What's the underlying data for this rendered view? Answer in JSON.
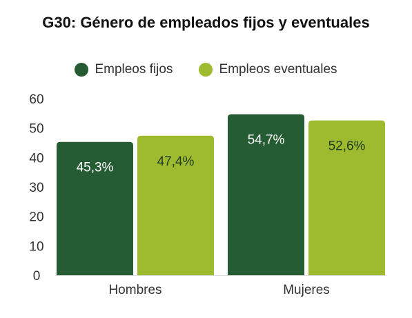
{
  "chart_data": {
    "type": "bar",
    "title": "G30: Género de empleados fijos y eventuales",
    "categories": [
      "Hombres",
      "Mujeres"
    ],
    "series": [
      {
        "name": "Empleos fijos",
        "values": [
          45.3,
          54.7
        ],
        "labels": [
          "45,3%",
          "54,7%"
        ],
        "color": "#265c33"
      },
      {
        "name": "Empleos eventuales",
        "values": [
          47.4,
          52.6
        ],
        "labels": [
          "47,4%",
          "52,6%"
        ],
        "color": "#9ebb2f"
      }
    ],
    "yticks": [
      "0",
      "10",
      "20",
      "30",
      "40",
      "50",
      "60"
    ],
    "ylim": [
      0,
      60
    ],
    "legend_position": "top-center",
    "grid": false
  }
}
